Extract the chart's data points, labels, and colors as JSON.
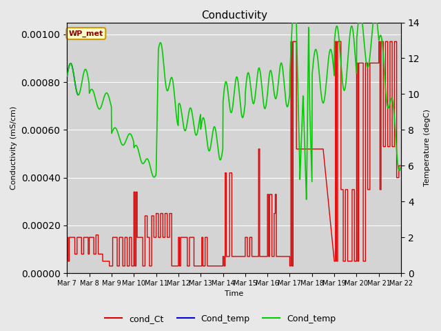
{
  "title": "Conductivity",
  "xlabel": "Time",
  "ylabel_left": "Conductivity (mS/cm)",
  "ylabel_right": "Temperature (degC)",
  "ylim_left": [
    0,
    0.00105
  ],
  "ylim_right": [
    0,
    14
  ],
  "background_color": "#e8e8e8",
  "plot_bg_color": "#d4d4d4",
  "x_tick_labels": [
    "Mar 7",
    "Mar 8",
    "Mar 9",
    "Mar 10",
    "Mar 11",
    "Mar 12",
    "Mar 13",
    "Mar 14",
    "Mar 15",
    "Mar 16",
    "Mar 17",
    "Mar 18",
    "Mar 19",
    "Mar 20",
    "Mar 21",
    "Mar 22"
  ],
  "annotation_text": "WP_met",
  "annotation_box_color": "#ffffcc",
  "annotation_text_color": "#8b0000",
  "legend_labels": [
    "cond_Ct",
    "Cond_temp",
    "Cond_temp"
  ],
  "legend_colors": [
    "#dd0000",
    "#0000cc",
    "#00cc00"
  ],
  "cond_ct_color": "#dd0000",
  "cond_temp_blue_color": "#0000bb",
  "cond_temp_green_color": "#00cc00",
  "figsize": [
    6.4,
    4.8
  ],
  "dpi": 100
}
